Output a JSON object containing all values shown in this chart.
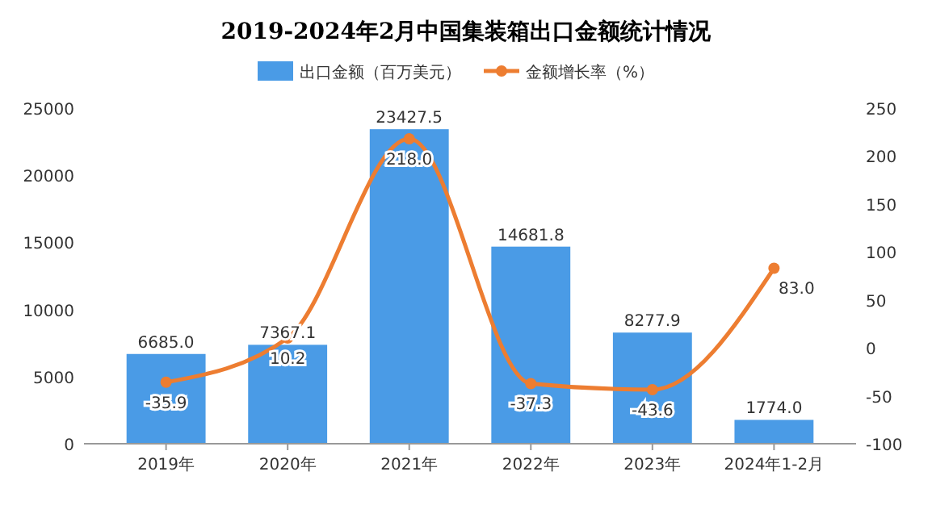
{
  "chart_data": {
    "type": "bar",
    "title": "2019-2024年2月中国集装箱出口金额统计情况",
    "categories": [
      "2019年",
      "2020年",
      "2021年",
      "2022年",
      "2023年",
      "2024年1-2月"
    ],
    "series": [
      {
        "name": "出口金额（百万美元）",
        "color": "#4a9be6",
        "values": [
          6685.0,
          7367.1,
          23427.5,
          14681.8,
          8277.9,
          1774.0
        ],
        "value_labels": [
          "6685.0",
          "7367.1",
          "23427.5",
          "14681.8",
          "8277.9",
          "1774.0"
        ]
      },
      {
        "name": "金额增长率（%）",
        "type": "line",
        "axis": "y2",
        "color": "#ed7d31",
        "marker": "circle",
        "values": [
          -35.9,
          10.2,
          218.0,
          -37.3,
          -43.6,
          83.0
        ],
        "value_labels": [
          "-35.9",
          "10.2",
          "218.0",
          "-37.3",
          "-43.6",
          "83.0"
        ]
      }
    ],
    "ylim": [
      0,
      25000
    ],
    "yticks": [
      0,
      5000,
      10000,
      15000,
      20000,
      25000
    ],
    "y2lim": [
      -100,
      250
    ],
    "y2ticks": [
      -100,
      -50,
      0,
      50,
      100,
      150,
      200,
      250
    ],
    "legend": "top",
    "grid": false
  }
}
